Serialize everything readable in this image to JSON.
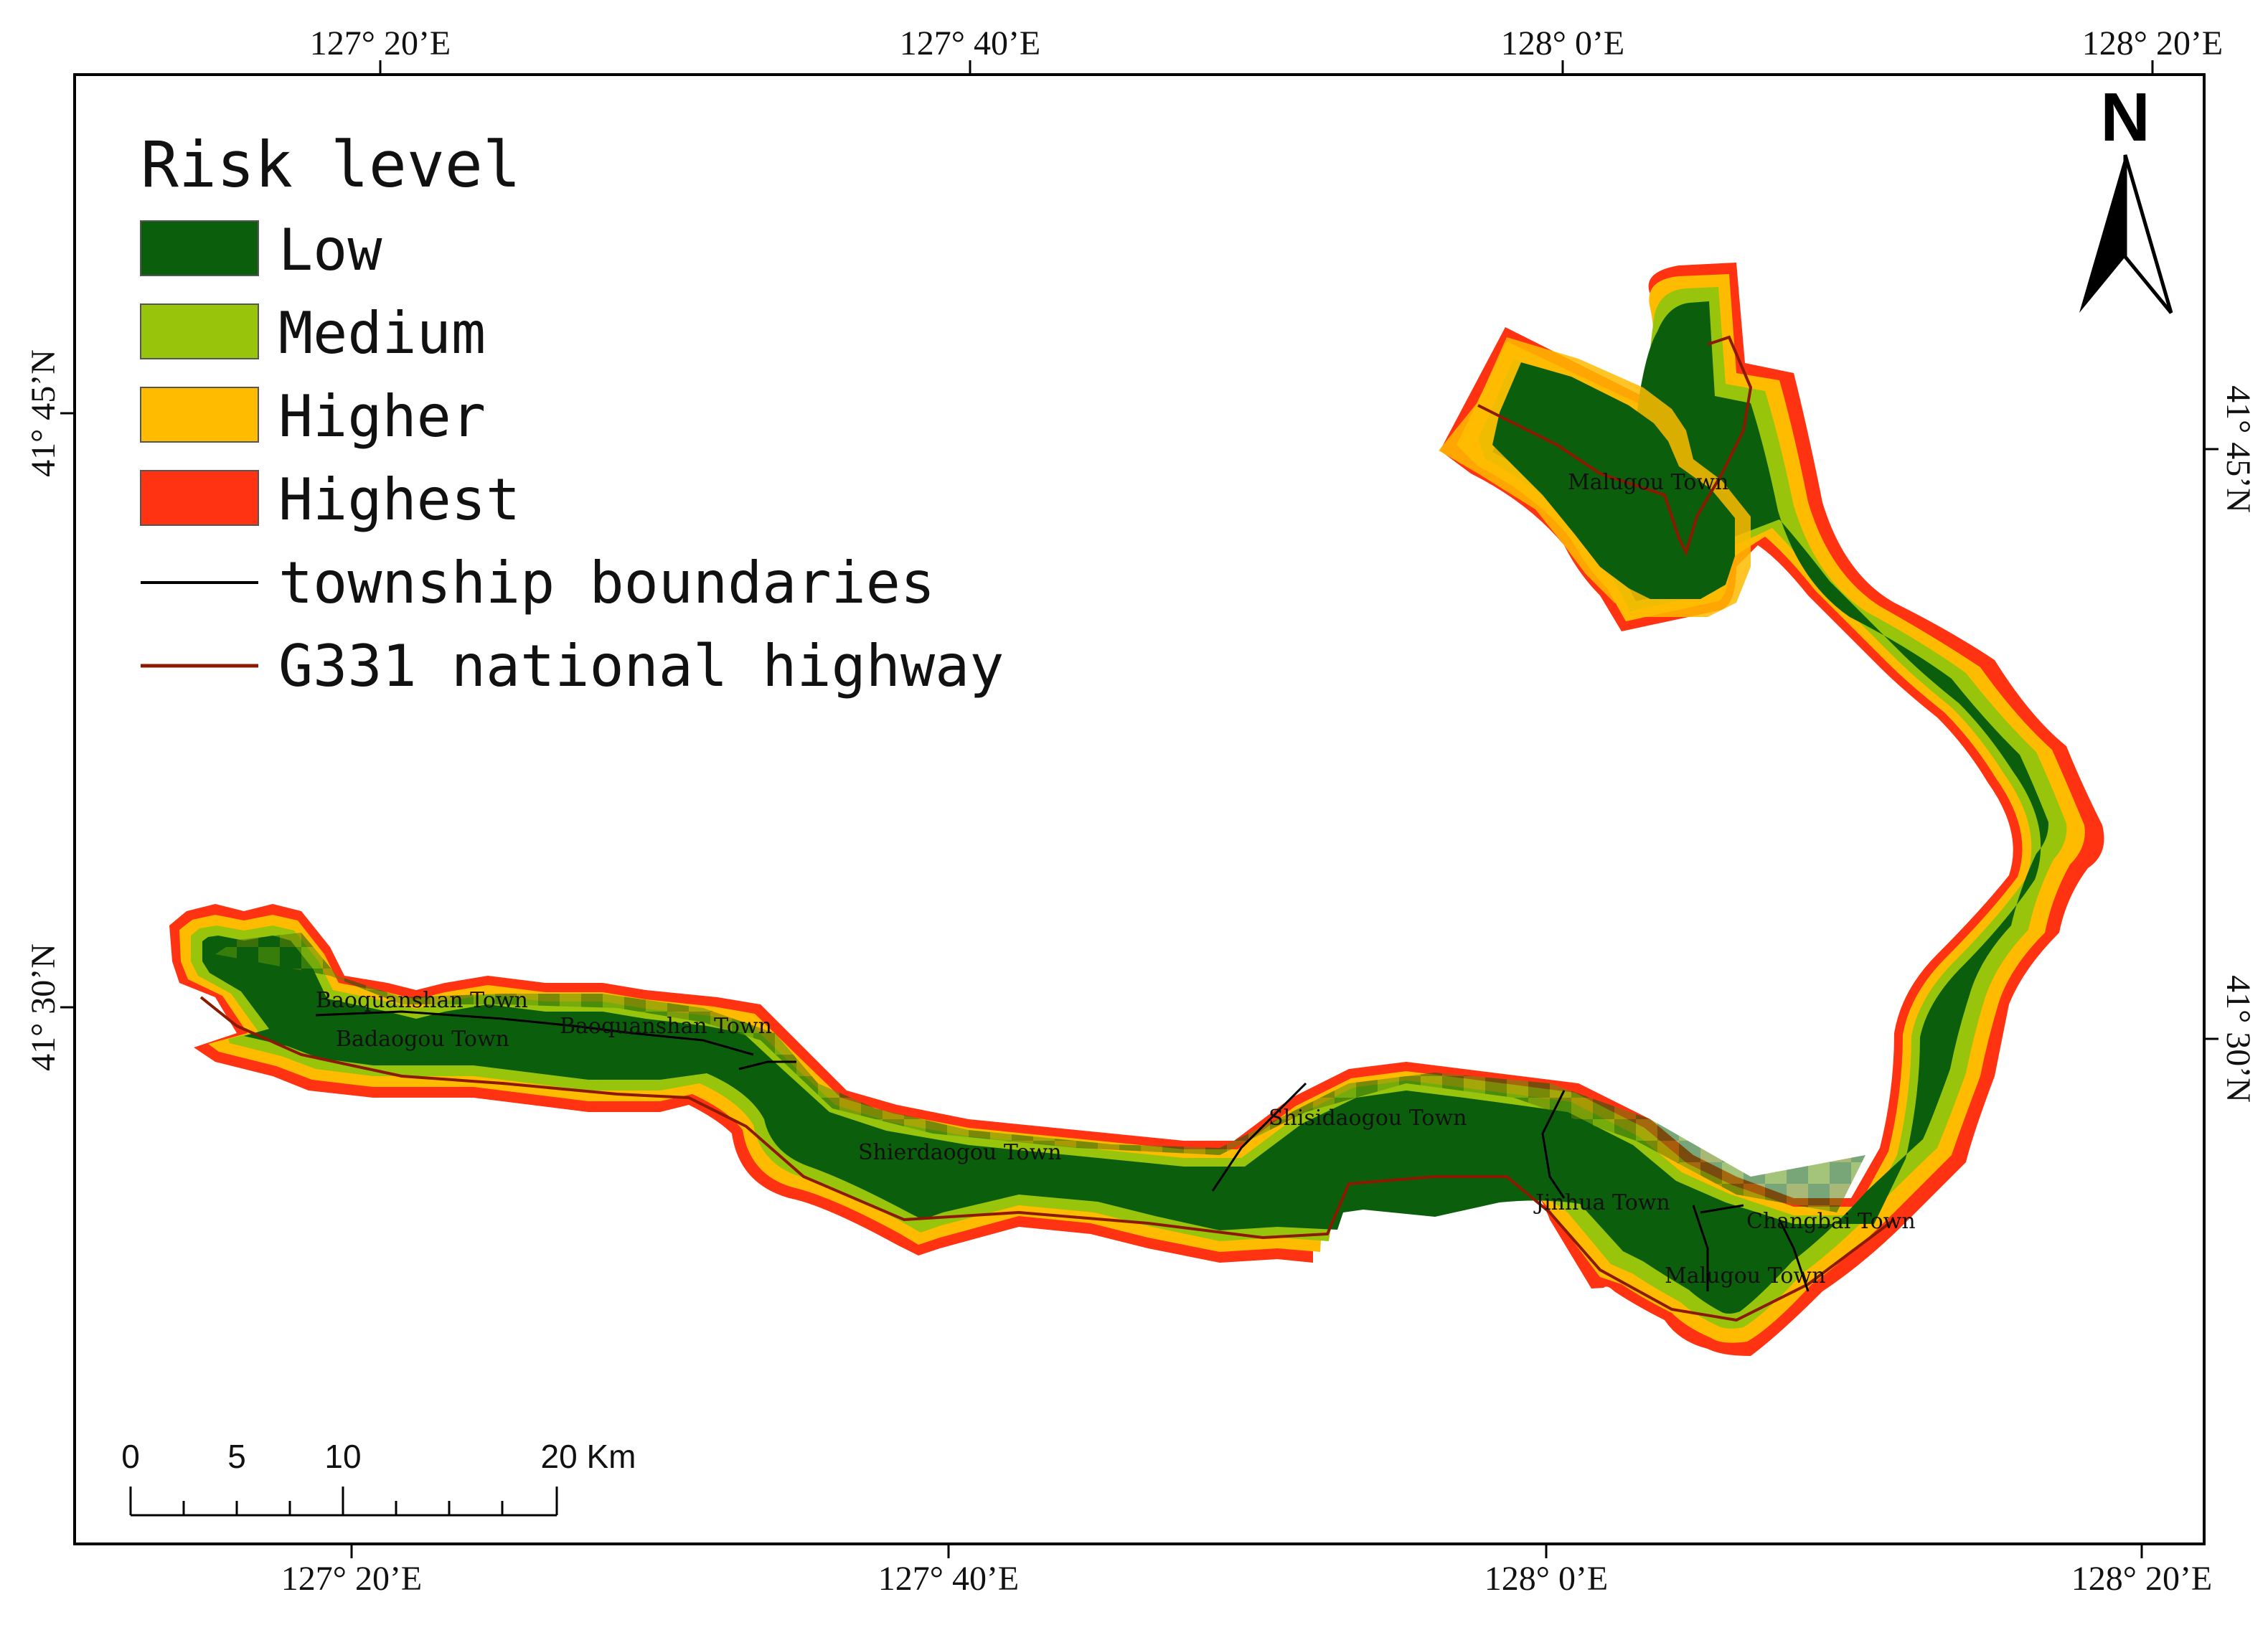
{
  "map": {
    "graticule": {
      "top": [
        "127° 20’E",
        "127° 40’E",
        "128° 0’E",
        "128° 20’E"
      ],
      "bottom": [
        "127° 20’E",
        "127° 40’E",
        "128° 0’E",
        "128° 20’E"
      ],
      "left": [
        "41° 45’N",
        "41° 30’N"
      ],
      "right": [
        "41° 45’N",
        "41° 30’N"
      ]
    },
    "legend": {
      "title": "Risk level",
      "classes": [
        {
          "label": "Low",
          "color": "#0b5e0b"
        },
        {
          "label": "Medium",
          "color": "#99c40c"
        },
        {
          "label": "Higher",
          "color": "#ffbb00"
        },
        {
          "label": "Highest",
          "color": "#ff3311"
        }
      ],
      "lines": [
        {
          "label": "township boundaries",
          "color": "#000000"
        },
        {
          "label": "G331 national highway",
          "color": "#8b1a00"
        }
      ]
    },
    "towns": [
      "Malugou Town",
      "Baoquanshan Town",
      "Badaogou Town",
      "Baoquanshan Town",
      "Shierdaogou Town",
      "Shisidaogou Town",
      "Jinhua Town",
      "Changbai Town",
      "Malugou Town"
    ],
    "north_arrow": {
      "label": "N"
    },
    "scale_bar": {
      "labels": [
        "0",
        "5",
        "10",
        "20 Km"
      ]
    }
  }
}
